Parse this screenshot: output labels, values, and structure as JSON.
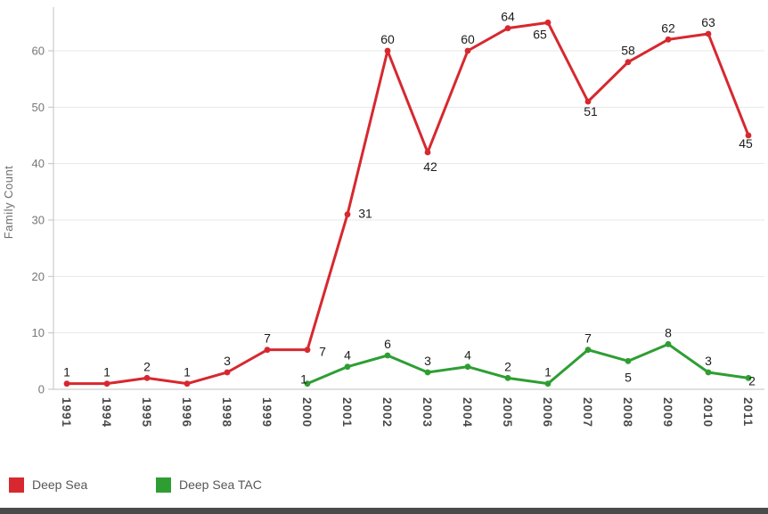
{
  "chart_data": {
    "type": "line",
    "title": "",
    "xlabel": "",
    "ylabel": "Family Count",
    "ylim": [
      0,
      67
    ],
    "yticks": [
      0,
      10,
      20,
      30,
      40,
      50,
      60
    ],
    "grid": true,
    "legend_position": "bottom-left",
    "point_labels_visible": true,
    "categories": [
      "1991",
      "1994",
      "1995",
      "1996",
      "1998",
      "1999",
      "2000",
      "2001",
      "2002",
      "2003",
      "2004",
      "2005",
      "2006",
      "2007",
      "2008",
      "2009",
      "2010",
      "2011"
    ],
    "series": [
      {
        "name": "Deep Sea",
        "color": "#d7282f",
        "start_index": 0,
        "values": [
          1,
          1,
          2,
          1,
          3,
          7,
          7,
          31,
          60,
          42,
          60,
          64,
          65,
          51,
          58,
          62,
          63,
          45
        ]
      },
      {
        "name": "Deep Sea TAC",
        "color": "#2e9e33",
        "start_index": 6,
        "values": [
          1,
          4,
          6,
          3,
          4,
          2,
          1,
          7,
          5,
          8,
          3,
          2
        ]
      }
    ]
  },
  "legend": {
    "items": [
      {
        "label": "Deep Sea",
        "color": "#d7282f"
      },
      {
        "label": "Deep Sea TAC",
        "color": "#2e9e33"
      }
    ]
  },
  "colors": {
    "background": "#ffffff",
    "grid": "#e7e7e7",
    "axis": "#c2c2c2",
    "tick_text": "#767676",
    "category_text": "#4a4a4a",
    "data_label": "#1c1c1c",
    "legend_text": "#565656",
    "bottom_bar": "#4b4b4b"
  }
}
